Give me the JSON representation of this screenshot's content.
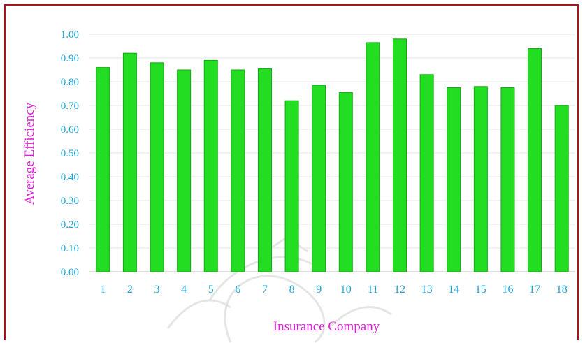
{
  "chart_data": {
    "type": "bar",
    "categories": [
      "1",
      "2",
      "3",
      "4",
      "5",
      "6",
      "7",
      "8",
      "9",
      "10",
      "11",
      "12",
      "13",
      "14",
      "15",
      "16",
      "17",
      "18"
    ],
    "values": [
      0.86,
      0.92,
      0.88,
      0.85,
      0.89,
      0.85,
      0.855,
      0.72,
      0.785,
      0.755,
      0.965,
      0.98,
      0.83,
      0.775,
      0.78,
      0.775,
      0.94,
      0.7
    ],
    "title": "",
    "xlabel": "Insurance Company",
    "ylabel": "Average Efficiency",
    "ylim": [
      0,
      1.0
    ],
    "yticks": [
      "0.00",
      "0.10",
      "0.20",
      "0.30",
      "0.40",
      "0.50",
      "0.60",
      "0.70",
      "0.80",
      "0.90",
      "1.00"
    ],
    "grid": true,
    "colors": {
      "bar": "#22dd22",
      "bar_edge": "#14a814",
      "tick_text": "#1fa3d8",
      "axis_title": "#e020d8",
      "frame": "#a01818"
    }
  }
}
